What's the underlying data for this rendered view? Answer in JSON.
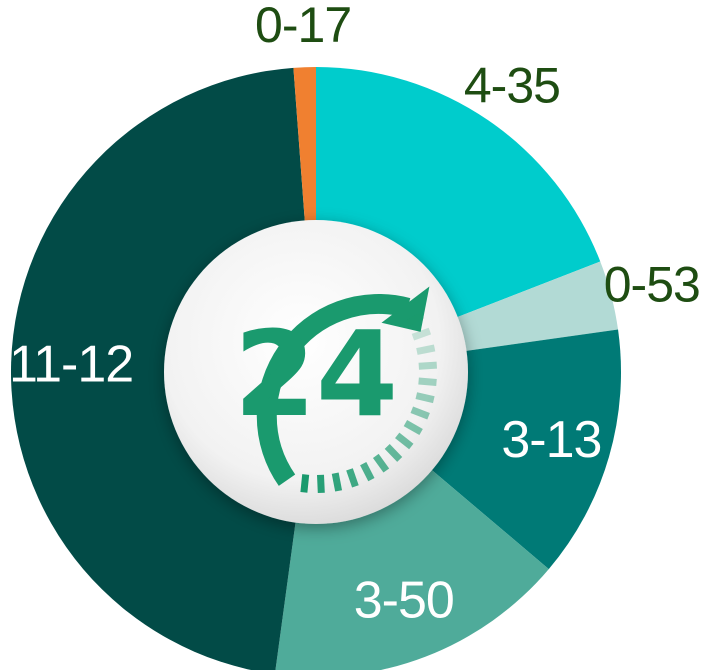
{
  "chart_data": {
    "type": "pie",
    "style": "donut",
    "center_label": "24",
    "slices": [
      {
        "label": "4-35",
        "hours": 4,
        "minutes": 35,
        "value": 4.583,
        "color": "#00cccc",
        "label_position": "outside"
      },
      {
        "label": "0-53",
        "hours": 0,
        "minutes": 53,
        "value": 0.883,
        "color": "#b2dad5",
        "label_position": "outside"
      },
      {
        "label": "3-13",
        "hours": 3,
        "minutes": 13,
        "value": 3.217,
        "color": "#007a76",
        "label_position": "inside"
      },
      {
        "label": "3-50",
        "hours": 3,
        "minutes": 50,
        "value": 3.833,
        "color": "#4fab9a",
        "label_position": "inside"
      },
      {
        "label": "11-12",
        "hours": 11,
        "minutes": 12,
        "value": 11.2,
        "color": "#024b47",
        "label_position": "inside"
      },
      {
        "label": "0-17",
        "hours": 0,
        "minutes": 17,
        "value": 0.283,
        "color": "#f08030",
        "label_position": "outside"
      }
    ],
    "colors": {
      "outside_label": "#1e4d12",
      "inside_label": "#ffffff",
      "center_text": "#1a9a6e",
      "arrow": "#1a9a6e"
    },
    "legend": "none"
  }
}
